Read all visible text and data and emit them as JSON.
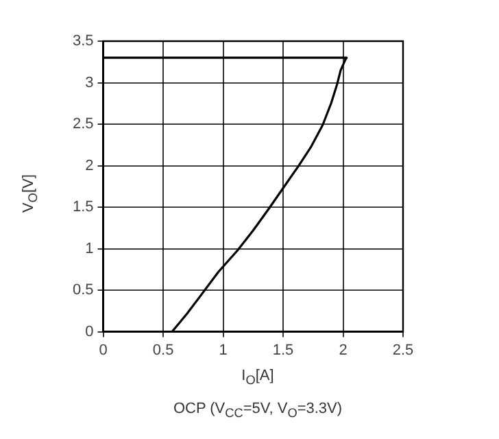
{
  "chart_data": {
    "type": "line",
    "xlabel": "I$_{O}$[A]",
    "ylabel": "V$_{O}$[V]",
    "annotations": [
      "OCP (V$_{CC}$=5V, V$_{O}$=3.3V)"
    ],
    "xlim": [
      0,
      2.5
    ],
    "xticks": [
      0,
      0.5,
      1,
      1.5,
      2,
      2.5
    ],
    "ylim": [
      0,
      3.5
    ],
    "yticks": [
      0,
      0.5,
      1,
      1.5,
      2,
      2.5,
      3,
      3.5
    ],
    "grid": true,
    "marker": "none",
    "line_style": "solid",
    "series": [
      {
        "color": "#000000",
        "x": [
          0,
          2.03,
          2.02,
          1.98,
          1.95,
          1.9,
          1.83,
          1.73,
          1.63,
          1.5,
          1.38,
          1.25,
          1.12,
          0.96,
          0.815,
          0.7,
          0.574
        ],
        "values": [
          3.3,
          3.3,
          3.28,
          3.15,
          2.98,
          2.75,
          2.49,
          2.22,
          2.0,
          1.73,
          1.48,
          1.22,
          0.98,
          0.72,
          0.44,
          0.22,
          0
        ]
      }
    ]
  }
}
